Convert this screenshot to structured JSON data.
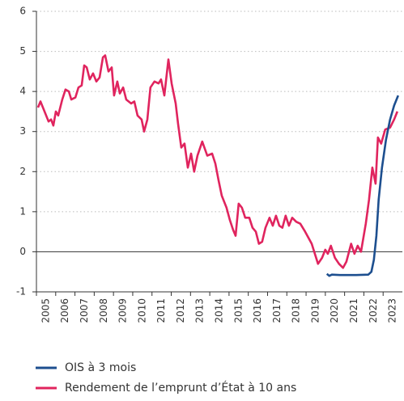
{
  "chart_data": {
    "type": "line",
    "xlim": [
      2005,
      2024
    ],
    "xticks": [
      2005,
      2006,
      2007,
      2008,
      2009,
      2010,
      2011,
      2012,
      2013,
      2014,
      2015,
      2016,
      2017,
      2018,
      2019,
      2020,
      2021,
      2022,
      2023
    ],
    "ylim": [
      -1,
      6
    ],
    "yticks": [
      -1,
      0,
      1,
      2,
      3,
      4,
      5,
      6
    ],
    "grid": true,
    "series": [
      {
        "name": "OIS à 3 mois",
        "color": "#1d4f8f",
        "x": [
          2020.08,
          2020.21,
          2020.34,
          2020.76,
          2021.6,
          2022.23,
          2022.39,
          2022.52,
          2022.65,
          2022.77,
          2022.94,
          2023.15,
          2023.36,
          2023.57,
          2023.78
        ],
        "values": [
          -0.55,
          -0.6,
          -0.57,
          -0.58,
          -0.58,
          -0.57,
          -0.5,
          -0.2,
          0.4,
          1.3,
          2.1,
          2.8,
          3.3,
          3.65,
          3.9
        ]
      },
      {
        "name": "Rendement de l’emprunt d’État à 10 ans",
        "color": "#e0245e",
        "x": [
          2005.08,
          2005.21,
          2005.42,
          2005.63,
          2005.76,
          2005.88,
          2006.01,
          2006.13,
          2006.34,
          2006.51,
          2006.68,
          2006.81,
          2007.02,
          2007.18,
          2007.35,
          2007.48,
          2007.61,
          2007.77,
          2007.94,
          2008.11,
          2008.28,
          2008.45,
          2008.57,
          2008.74,
          2008.91,
          2009.03,
          2009.2,
          2009.33,
          2009.5,
          2009.66,
          2009.92,
          2010.08,
          2010.25,
          2010.46,
          2010.59,
          2010.76,
          2010.92,
          2011.13,
          2011.34,
          2011.47,
          2011.64,
          2011.85,
          2012.02,
          2012.23,
          2012.35,
          2012.52,
          2012.69,
          2012.86,
          2013.03,
          2013.19,
          2013.36,
          2013.61,
          2013.87,
          2014.12,
          2014.29,
          2014.45,
          2014.62,
          2014.87,
          2015.04,
          2015.21,
          2015.34,
          2015.5,
          2015.67,
          2015.84,
          2016.05,
          2016.22,
          2016.39,
          2016.55,
          2016.72,
          2016.89,
          2017.1,
          2017.27,
          2017.44,
          2017.61,
          2017.77,
          2017.94,
          2018.11,
          2018.28,
          2018.49,
          2018.7,
          2018.95,
          2019.29,
          2019.62,
          2019.83,
          2020.0,
          2020.13,
          2020.29,
          2020.5,
          2020.71,
          2020.92,
          2021.09,
          2021.34,
          2021.51,
          2021.68,
          2021.85,
          2022.1,
          2022.27,
          2022.44,
          2022.61,
          2022.73,
          2022.9,
          2023.11,
          2023.36,
          2023.57,
          2023.74
        ],
        "values": [
          3.6,
          3.75,
          3.5,
          3.25,
          3.3,
          3.15,
          3.5,
          3.4,
          3.8,
          4.05,
          4.0,
          3.8,
          3.85,
          4.1,
          4.15,
          4.65,
          4.6,
          4.3,
          4.45,
          4.25,
          4.35,
          4.85,
          4.9,
          4.5,
          4.6,
          3.9,
          4.25,
          3.95,
          4.1,
          3.8,
          3.7,
          3.75,
          3.4,
          3.3,
          3.0,
          3.3,
          4.1,
          4.25,
          4.2,
          4.3,
          3.9,
          4.8,
          4.2,
          3.7,
          3.2,
          2.6,
          2.7,
          2.1,
          2.45,
          2.0,
          2.4,
          2.75,
          2.4,
          2.45,
          2.2,
          1.8,
          1.4,
          1.1,
          0.8,
          0.55,
          0.4,
          1.2,
          1.1,
          0.85,
          0.85,
          0.6,
          0.5,
          0.2,
          0.25,
          0.6,
          0.85,
          0.65,
          0.9,
          0.65,
          0.6,
          0.9,
          0.65,
          0.85,
          0.75,
          0.7,
          0.5,
          0.2,
          -0.3,
          -0.15,
          0.05,
          -0.05,
          0.15,
          -0.15,
          -0.3,
          -0.4,
          -0.25,
          0.2,
          -0.05,
          0.15,
          0.0,
          0.7,
          1.3,
          2.1,
          1.7,
          2.85,
          2.7,
          3.05,
          3.1,
          3.3,
          3.5
        ]
      }
    ]
  }
}
